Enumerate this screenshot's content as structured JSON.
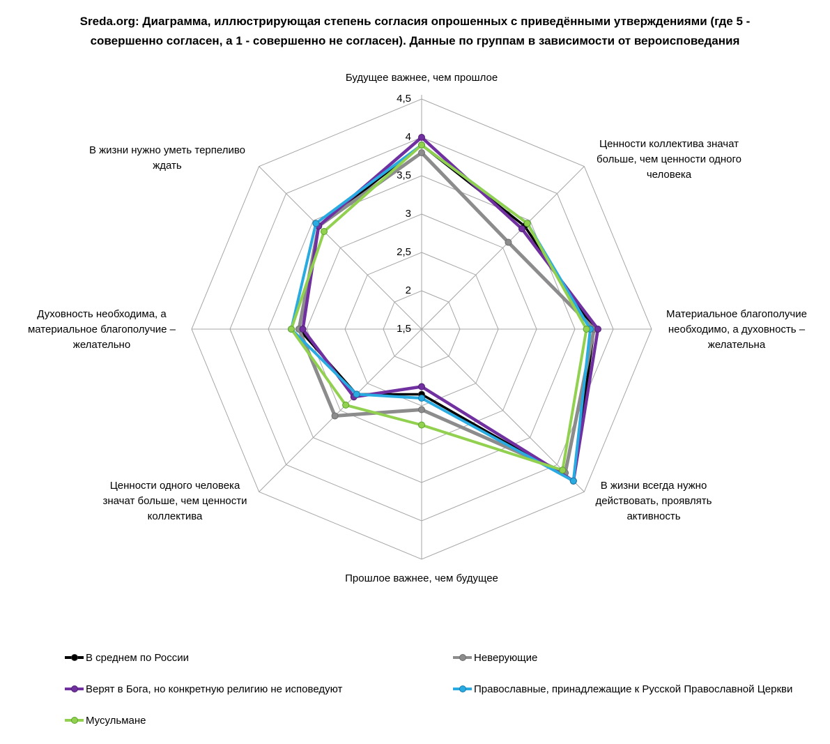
{
  "title": {
    "line1": "Sreda.org: Диаграмма, иллюстрирующая степень согласия опрошенных с приведёнными утверждениями (где 5 -",
    "line2": "совершенно согласен, а 1 - совершенно не согласен). Данные по группам в зависимости от вероисповедания"
  },
  "chart_data": {
    "type": "radar",
    "title": "Sreda.org: Диаграмма, иллюстрирующая степень согласия опрошенных с приведёнными утверждениями (где 5 - совершенно согласен, а 1 - совершенно не согласен). Данные по группам в зависимости от вероисповедания",
    "scale": {
      "min": 1.5,
      "max": 4.5,
      "step": 0.5,
      "tick_labels": [
        "4,5",
        "4",
        "3,5",
        "3",
        "2,5",
        "2",
        "1,5"
      ]
    },
    "grid": true,
    "grid_color": "#A6A6A6",
    "legend_position": "bottom",
    "categories": [
      "Будущее важнее, чем прошлое",
      "Ценности коллектива значат\nбольше, чем ценности одного\nчеловека",
      "Материальное благополучие\nнеобходимо, а духовность –\nжелательна",
      "В жизни всегда нужно\nдействовать, проявлять\nактивность",
      "Прошлое важнее, чем будущее",
      "Ценности одного человека\nзначат больше, чем ценности\nколлектива",
      "Духовность необходима, а\nматериальное благополучие –\nжелательно",
      "В жизни нужно уметь терпеливо\nждать"
    ],
    "series": [
      {
        "name": "В среднем по России",
        "color": "#000000",
        "marker_border": "#333333",
        "values": [
          3.9,
          3.4,
          3.75,
          4.3,
          2.35,
          2.7,
          3.1,
          3.4
        ]
      },
      {
        "name": "Неверующие",
        "color": "#8C8C8C",
        "marker_border": "#6E6E6E",
        "values": [
          3.8,
          3.1,
          3.75,
          4.15,
          2.55,
          3.1,
          3.1,
          3.4
        ]
      },
      {
        "name": "Верят в Бога, но конкретную религию не исповедуют",
        "color": "#7030A0",
        "marker_border": "#4F2170",
        "values": [
          4.0,
          3.35,
          3.8,
          4.3,
          2.25,
          2.75,
          3.05,
          3.4
        ]
      },
      {
        "name": "Православные, принадлежащие к Русской Православной Церкви",
        "color": "#29ABE2",
        "marker_border": "#1B7AA6",
        "values": [
          3.9,
          3.45,
          3.7,
          4.3,
          2.4,
          2.7,
          3.2,
          3.45
        ]
      },
      {
        "name": "Мусульмане",
        "color": "#92D050",
        "marker_border": "#5BA32B",
        "values": [
          3.9,
          3.45,
          3.65,
          4.1,
          2.75,
          2.9,
          3.2,
          3.3
        ]
      }
    ]
  },
  "legend": {
    "left_column": [
      0,
      2,
      4
    ],
    "right_column": [
      1,
      3
    ]
  }
}
